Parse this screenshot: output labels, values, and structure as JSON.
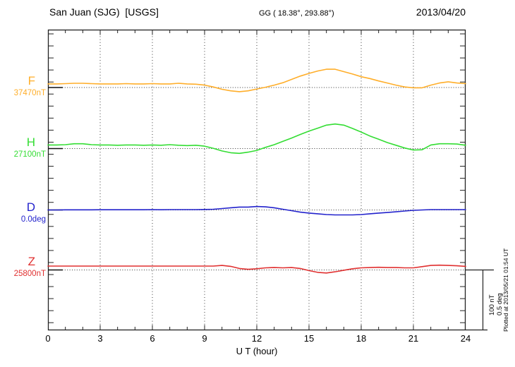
{
  "header": {
    "station": "San Juan (SJG)  [USGS]",
    "coords": "GG ( 18.38°, 293.88°)",
    "date": "2013/04/20"
  },
  "footer_note": "Plotted at 2013/05/21 01:54 UT",
  "scale_bar": {
    "line1": "100 nT",
    "line2": "0.5 deg"
  },
  "xaxis": {
    "label": "U T (hour)",
    "tick_labels": [
      "0",
      "3",
      "6",
      "9",
      "12",
      "15",
      "18",
      "21",
      "24"
    ],
    "min": 0,
    "max": 24,
    "minor_step_hours": 1,
    "grid_step_hours": 3
  },
  "colors": {
    "F": "#ffae2a",
    "H": "#33dd33",
    "D": "#2222cc",
    "Z": "#e03030",
    "frame": "#222222",
    "grid": "#3a3a3a",
    "baseline": "#333333",
    "baseline_solid": "#111111"
  },
  "chart_data": {
    "type": "line",
    "title": "San Juan (SJG) [USGS] magnetogram for 2013/04/20",
    "xlabel": "U T (hour)",
    "x_start_hour": 0,
    "x_step_hours": 0.5,
    "x_range_hours": [
      0,
      24
    ],
    "grid": "dotted vertical lines every 3 hours; dotted horizontal baseline per channel",
    "scale_annotation": "100 nT / 0.5 deg",
    "series": [
      {
        "name": "F",
        "base_label": "37470nT",
        "base_value": 37470,
        "unit": "nT",
        "color_key": "F",
        "offsets": [
          6,
          6,
          6.5,
          7,
          7,
          6.5,
          6,
          6,
          6,
          6.5,
          6,
          6,
          6.5,
          6,
          6,
          7,
          6,
          5.5,
          4,
          1,
          -3,
          -5.5,
          -7,
          -5.5,
          -2.5,
          0.5,
          4,
          8,
          13.5,
          19,
          23.5,
          27.5,
          30.5,
          30.5,
          26.5,
          22.5,
          18,
          15,
          11,
          7.5,
          4,
          1,
          -0.5,
          -0.5,
          4,
          7.5,
          9.5,
          7.5,
          6.5
        ]
      },
      {
        "name": "H",
        "base_label": "27100nT",
        "base_value": 27100,
        "unit": "nT",
        "color_key": "H",
        "offsets": [
          6,
          6,
          6.5,
          8,
          8,
          6.5,
          6,
          6,
          5.5,
          6,
          6,
          5.5,
          6,
          5.5,
          6.5,
          5.5,
          5,
          5.5,
          4,
          0.5,
          -4,
          -7,
          -8,
          -6,
          -3,
          2,
          6.5,
          12,
          17.5,
          23.5,
          29,
          34,
          39,
          41,
          39,
          33.5,
          27.5,
          21,
          15.5,
          10,
          5.5,
          1,
          -2.5,
          -2,
          6,
          8,
          8,
          7.5,
          5.5
        ]
      },
      {
        "name": "D",
        "base_label": "0.0deg",
        "base_value": 0.0,
        "unit": "deg",
        "color_key": "D",
        "offsets": [
          0,
          0,
          0.001,
          0.001,
          0.001,
          0.001,
          0.002,
          0.002,
          0.002,
          0.002,
          0.002,
          0.002,
          0.003,
          0.002,
          0.003,
          0.003,
          0.003,
          0.003,
          0.004,
          0.006,
          0.012,
          0.018,
          0.024,
          0.024,
          0.029,
          0.026,
          0.018,
          0.006,
          -0.006,
          -0.018,
          -0.026,
          -0.032,
          -0.038,
          -0.041,
          -0.041,
          -0.041,
          -0.038,
          -0.032,
          -0.026,
          -0.021,
          -0.015,
          -0.009,
          -0.003,
          0,
          0.003,
          0.003,
          0.003,
          0.003,
          0.003
        ]
      },
      {
        "name": "Z",
        "base_label": "25800nT",
        "base_value": 25800,
        "unit": "nT",
        "color_key": "Z",
        "offsets": [
          6.5,
          6.5,
          6.5,
          6.5,
          6.5,
          6.5,
          6.5,
          6.5,
          6.5,
          6.5,
          6.5,
          6.5,
          6.5,
          6.5,
          6.5,
          6.5,
          6.5,
          6.5,
          6.5,
          6.5,
          7.5,
          6,
          2.5,
          1,
          2,
          3.5,
          4,
          3.5,
          4,
          2.5,
          -1,
          -4,
          -5,
          -3,
          -0.5,
          2,
          3.5,
          4,
          4.5,
          4,
          4,
          3.5,
          3.5,
          5.5,
          7.5,
          8,
          7.5,
          7,
          6
        ]
      }
    ]
  }
}
